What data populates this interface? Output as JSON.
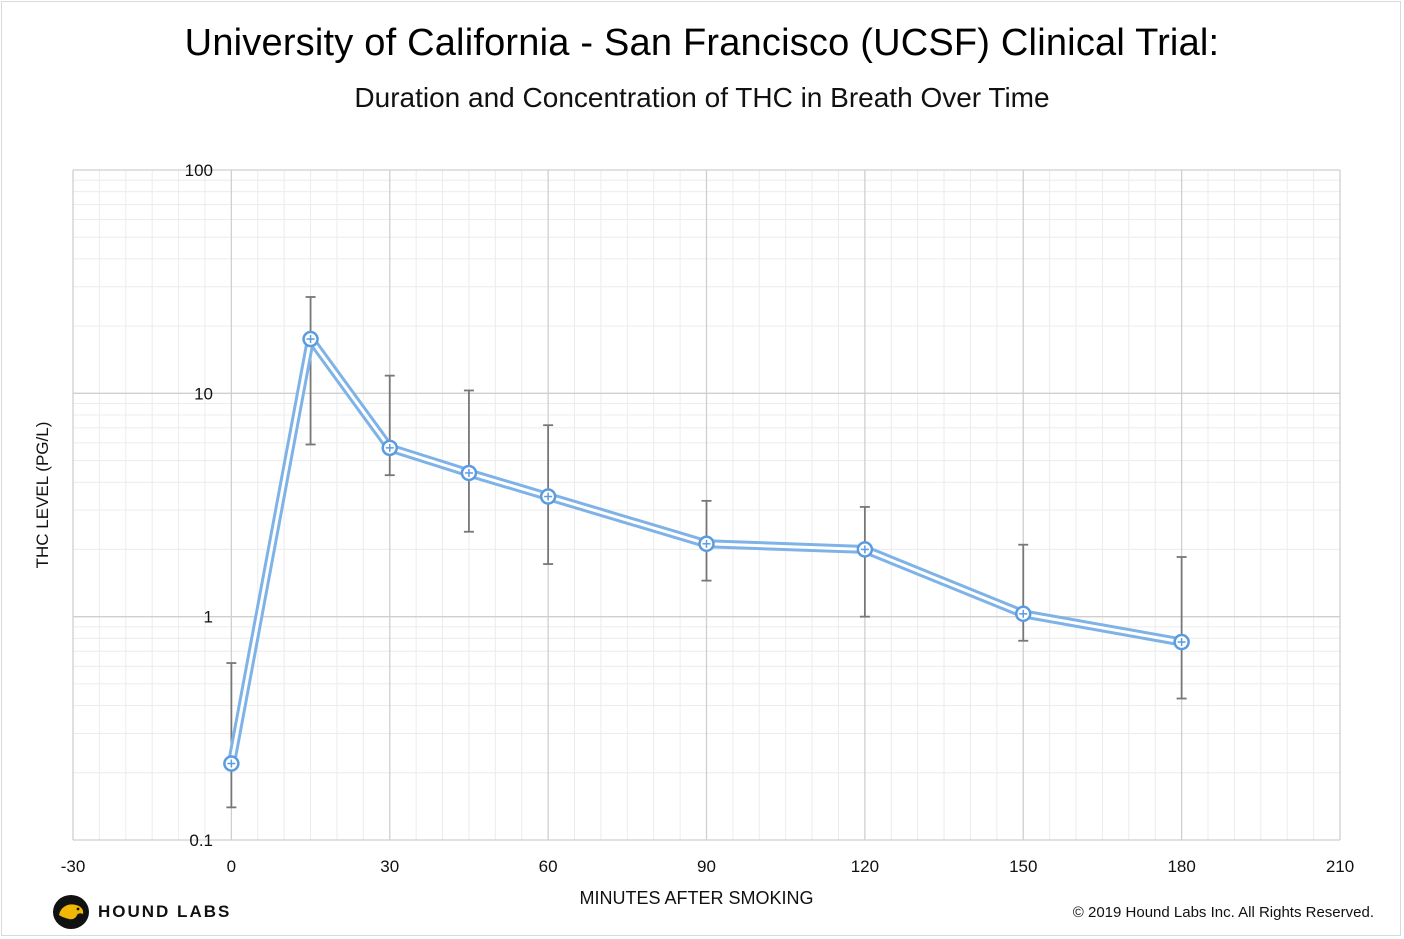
{
  "chart_data": {
    "type": "line",
    "title": "University of California - San Francisco (UCSF) Clinical Trial:",
    "subtitle": "Duration and Concentration of THC in Breath Over Time",
    "xlabel": "MINUTES AFTER SMOKING",
    "ylabel": "THC LEVEL (PG/L)",
    "xlim": [
      -30,
      210
    ],
    "ylim": [
      0.1,
      100
    ],
    "yscale": "log",
    "xticks": [
      -30,
      0,
      30,
      60,
      90,
      120,
      150,
      180,
      210
    ],
    "yticks": [
      {
        "value": 100,
        "label": "100"
      },
      {
        "value": 10,
        "label": "10"
      },
      {
        "value": 1,
        "label": "1"
      },
      {
        "value": 0.1,
        "label": "0.1"
      }
    ],
    "grid": true,
    "series": [
      {
        "color": "#7fb3e8",
        "x": [
          0,
          15,
          30,
          45,
          60,
          90,
          120,
          150,
          180
        ],
        "values": [
          0.22,
          17.5,
          5.7,
          4.4,
          3.45,
          2.12,
          2.0,
          1.03,
          0.77
        ],
        "error_low": [
          0.14,
          5.9,
          4.3,
          2.4,
          1.72,
          1.45,
          1.0,
          0.78,
          0.43
        ],
        "error_high": [
          0.62,
          27,
          12,
          10.3,
          7.2,
          3.3,
          3.1,
          2.1,
          1.85
        ]
      }
    ]
  },
  "branding": {
    "logo_text": "HOUND LABS",
    "copyright": "© 2019 Hound Labs Inc. All Rights Reserved."
  }
}
